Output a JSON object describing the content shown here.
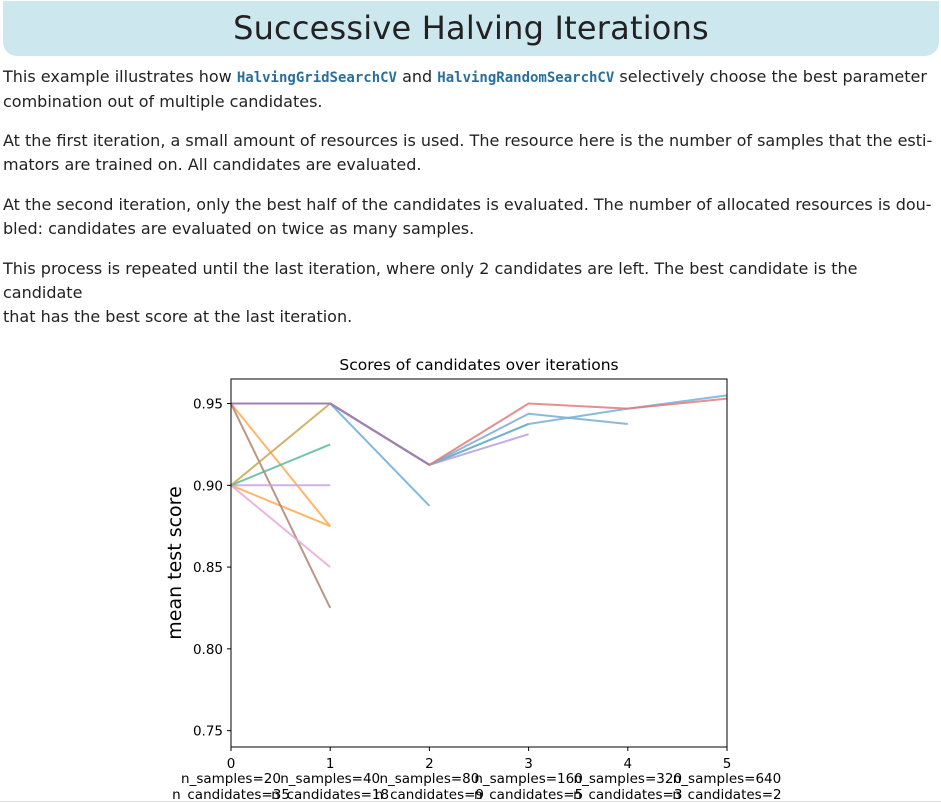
{
  "page": {
    "title": "Successive Halving Iterations",
    "p1": {
      "t1": "This example illustrates how ",
      "code1": "HalvingGridSearchCV",
      "t2": " and ",
      "code2": "HalvingRandomSearchCV",
      "t3": " selectively choose the best parameter",
      "line2": "combination out of multiple candidates."
    },
    "p2": {
      "line1": "At the first iteration, a small amount of resources is used. The resource here is the number of samples that the esti-",
      "line2": "mators are trained on. All candidates are evaluated."
    },
    "p3": {
      "line1": "At the second iteration, only the best half of the candidates is evaluated. The number of allocated resources is dou-",
      "line2": "bled: candidates are evaluated on twice as many samples."
    },
    "p4": {
      "line1": "This process is repeated until the last iteration, where only 2 candidates are left. The best candidate is the candidate",
      "line2": "that has the best score at the last iteration."
    }
  },
  "chart_data": {
    "type": "line",
    "title": "Scores of candidates over iterations",
    "ylabel": "mean test score",
    "xlim": [
      0,
      5
    ],
    "ylim": [
      0.74,
      0.965
    ],
    "xticks": [
      "0",
      "1",
      "2",
      "3",
      "4",
      "5"
    ],
    "xtick_values": [
      0,
      1,
      2,
      3,
      4,
      5
    ],
    "yticks": [
      "0.75",
      "0.80",
      "0.85",
      "0.90",
      "0.95"
    ],
    "ytick_values": [
      0.75,
      0.8,
      0.85,
      0.9,
      0.95
    ],
    "iteration_labels": [
      {
        "x": 0,
        "n_samples": "n_samples=20",
        "n_candidates": "n_candidates=35"
      },
      {
        "x": 1,
        "n_samples": "n_samples=40",
        "n_candidates": "n_candidates=18"
      },
      {
        "x": 2,
        "n_samples": "n_samples=80",
        "n_candidates": "n_candidates=9"
      },
      {
        "x": 3,
        "n_samples": "n_samples=160",
        "n_candidates": "n_candidates=5"
      },
      {
        "x": 4,
        "n_samples": "n_samples=320",
        "n_candidates": "n_candidates=3"
      },
      {
        "x": 5,
        "n_samples": "n_samples=640",
        "n_candidates": "n_candidates=2"
      }
    ],
    "grid": false,
    "legend": "none",
    "series": [
      {
        "color": "#ffa94d",
        "x": [
          0,
          1
        ],
        "y": [
          0.95,
          0.875
        ]
      },
      {
        "color": "#ffa94d",
        "x": [
          0,
          1
        ],
        "y": [
          0.9,
          0.875
        ]
      },
      {
        "color": "#b0846e",
        "x": [
          0,
          1
        ],
        "y": [
          0.95,
          0.825
        ]
      },
      {
        "color": "#e9a8d8",
        "x": [
          0,
          1
        ],
        "y": [
          0.9,
          0.85
        ]
      },
      {
        "color": "#c9a3e0",
        "x": [
          0,
          1
        ],
        "y": [
          0.9,
          0.9
        ]
      },
      {
        "color": "#5cb896",
        "x": [
          0,
          1
        ],
        "y": [
          0.9,
          0.925
        ]
      },
      {
        "color": "#c9a64f",
        "x": [
          0,
          1
        ],
        "y": [
          0.9,
          0.95
        ]
      },
      {
        "color": "#6aaed6",
        "x": [
          0,
          1,
          2
        ],
        "y": [
          0.95,
          0.95,
          0.8875
        ]
      },
      {
        "color": "#b79ce0",
        "x": [
          0,
          1,
          2,
          3
        ],
        "y": [
          0.95,
          0.95,
          0.9125,
          0.93125
        ]
      },
      {
        "color": "#5aa39b",
        "x": [
          0,
          1,
          2,
          3
        ],
        "y": [
          0.95,
          0.95,
          0.9125,
          0.9375
        ]
      },
      {
        "color": "#7aaccf",
        "x": [
          0,
          1,
          2,
          3,
          4
        ],
        "y": [
          0.95,
          0.95,
          0.9125,
          0.94375,
          0.9375
        ]
      },
      {
        "color": "#74b0d6",
        "x": [
          0,
          1,
          2,
          3,
          4,
          5
        ],
        "y": [
          0.95,
          0.95,
          0.9125,
          0.9375,
          0.946875,
          0.955
        ]
      },
      {
        "color": "#e27b7b",
        "x": [
          0,
          1,
          2,
          3,
          4,
          5
        ],
        "y": [
          0.95,
          0.95,
          0.9125,
          0.95,
          0.946875,
          0.953
        ]
      },
      {
        "color": "#9a7fb8",
        "x": [
          0,
          1,
          2
        ],
        "y": [
          0.95,
          0.95,
          0.9125
        ]
      }
    ]
  }
}
